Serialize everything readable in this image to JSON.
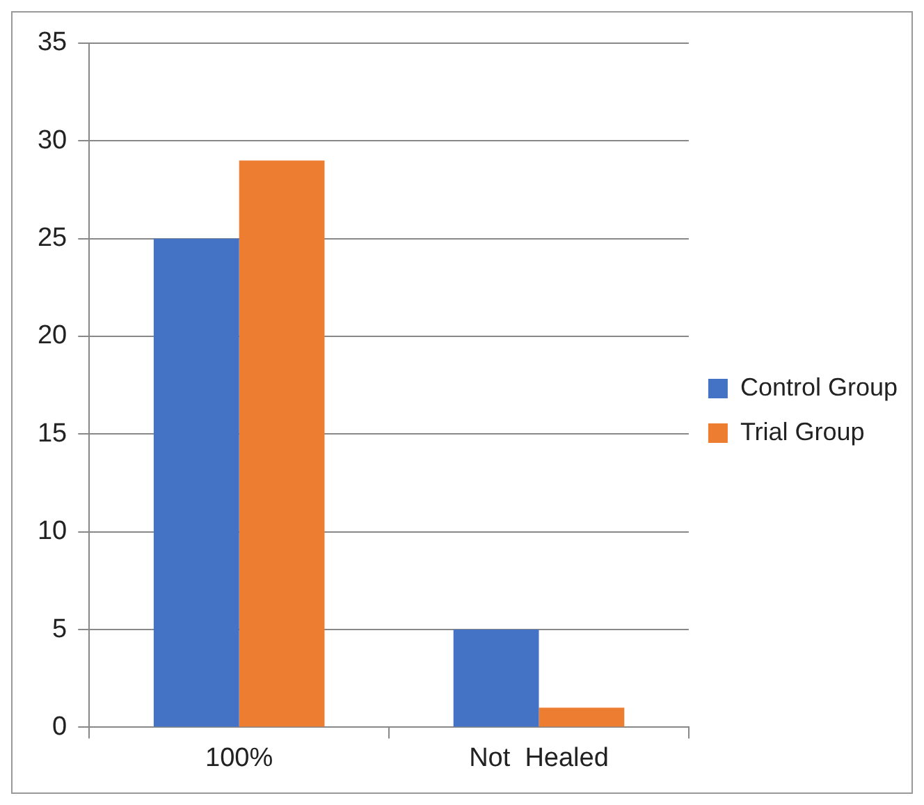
{
  "chart_data": {
    "type": "bar",
    "categories": [
      "100%",
      "Not  Healed"
    ],
    "series": [
      {
        "name": "Control Group",
        "color": "#4472c4",
        "values": [
          25,
          5
        ]
      },
      {
        "name": "Trial Group",
        "color": "#ed7d31",
        "values": [
          29,
          1
        ]
      }
    ],
    "ylim": [
      0,
      35
    ],
    "yticks": [
      0,
      5,
      10,
      15,
      20,
      25,
      30,
      35
    ],
    "grid": "y",
    "legend": "right"
  }
}
